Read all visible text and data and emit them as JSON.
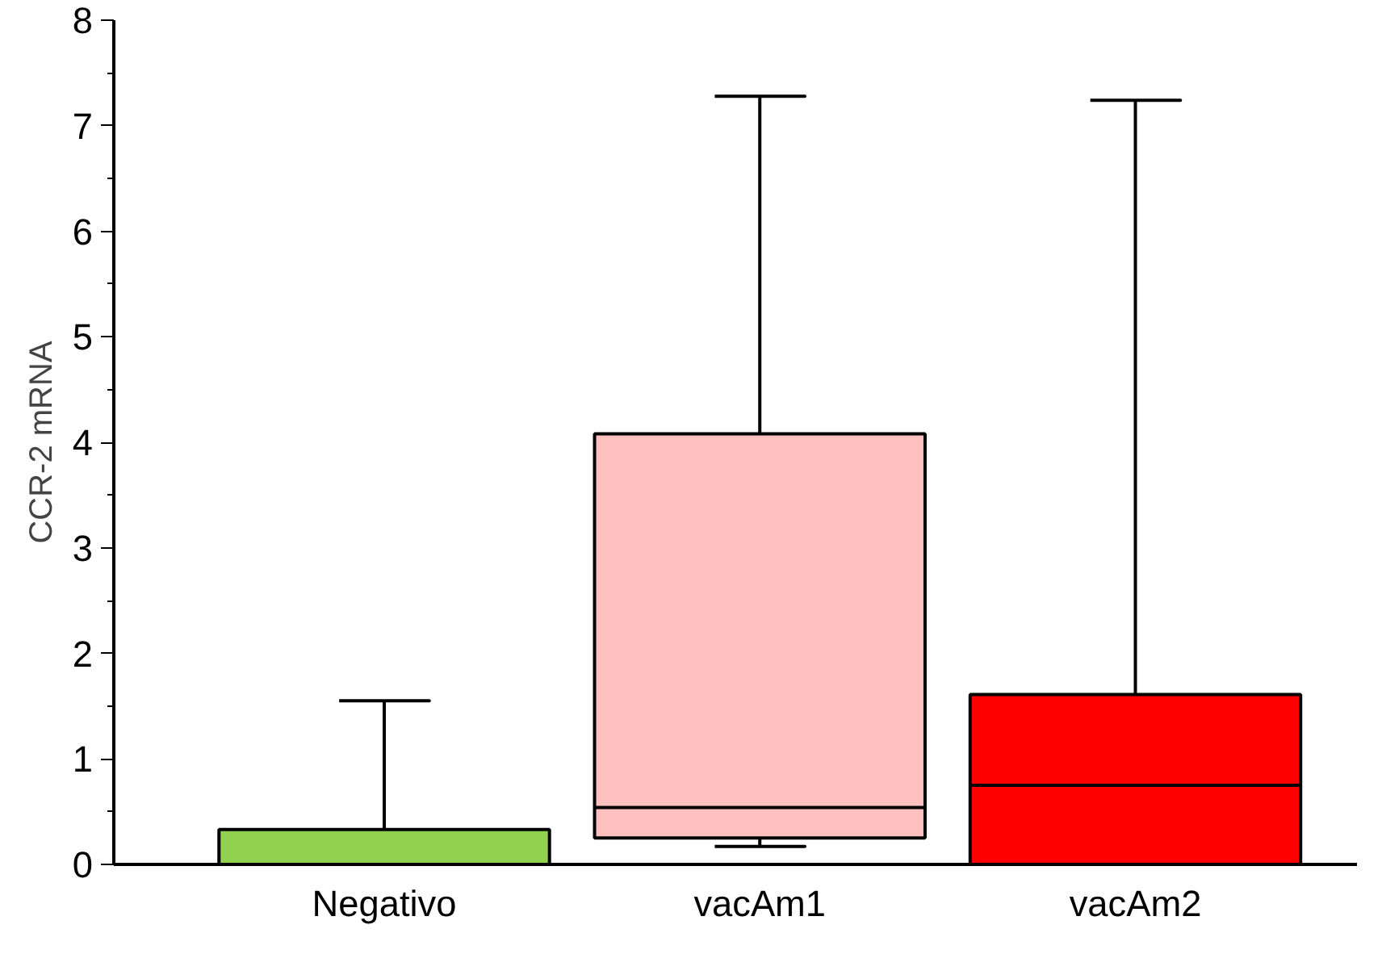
{
  "chart_data": {
    "type": "box",
    "ylabel": "CCR-2 mRNA",
    "categories": [
      "Negativo",
      "vacAm1",
      "vacAm2"
    ],
    "colors": [
      "#92d050",
      "#ffc0c0",
      "#ff0000"
    ],
    "boxes": [
      {
        "low": 0,
        "q1": 0,
        "median": 0,
        "q3": 0.33,
        "high": 1.55
      },
      {
        "low": 0.17,
        "q1": 0.25,
        "median": 0.54,
        "q3": 4.08,
        "high": 7.28
      },
      {
        "low": 0,
        "q1": 0,
        "median": 0.75,
        "q3": 1.61,
        "high": 7.24
      }
    ],
    "ylim": [
      0,
      8
    ],
    "yticks": [
      0,
      1,
      2,
      3,
      4,
      5,
      6,
      7,
      8
    ],
    "grid": false
  }
}
